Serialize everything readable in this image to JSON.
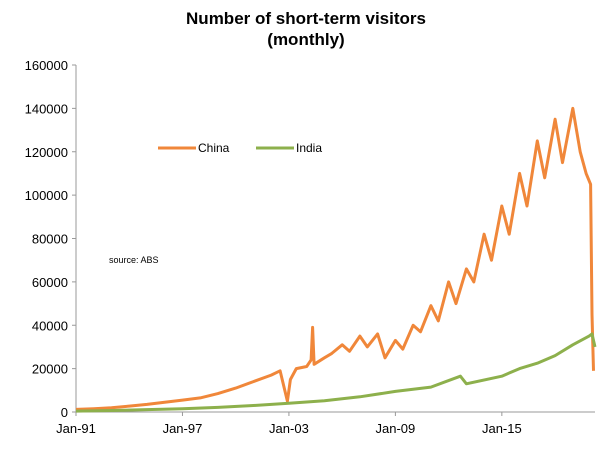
{
  "chart_data": {
    "type": "line",
    "title": [
      "Number of short-term visitors",
      "(monthly)"
    ],
    "xlabel": "",
    "ylabel": "",
    "ylim": [
      0,
      160000
    ],
    "xlim": [
      "1991-01",
      "2020-04"
    ],
    "yticks": [
      "0",
      "20000",
      "40000",
      "60000",
      "80000",
      "100000",
      "120000",
      "140000",
      "160000"
    ],
    "xticks": [
      {
        "label": "Jan-91",
        "year": 1991
      },
      {
        "label": "Jan-97",
        "year": 1997
      },
      {
        "label": "Jan-03",
        "year": 2003
      },
      {
        "label": "Jan-09",
        "year": 2009
      },
      {
        "label": "Jan-15",
        "year": 2015
      }
    ],
    "legend_position": "upper-left, inside plot",
    "annotation": "source:  ABS",
    "grid": false,
    "series": [
      {
        "name": "China",
        "color": "#F0873A",
        "points": [
          [
            "1991-01",
            1200
          ],
          [
            "1992-01",
            1500
          ],
          [
            "1993-01",
            2000
          ],
          [
            "1994-01",
            2700
          ],
          [
            "1995-01",
            3500
          ],
          [
            "1996-01",
            4500
          ],
          [
            "1997-01",
            5500
          ],
          [
            "1998-01",
            6500
          ],
          [
            "1999-01",
            8500
          ],
          [
            "2000-01",
            11000
          ],
          [
            "2001-01",
            14000
          ],
          [
            "2002-01",
            17000
          ],
          [
            "2002-07",
            19000
          ],
          [
            "2002-12",
            5000
          ],
          [
            "2003-02",
            15000
          ],
          [
            "2003-06",
            20000
          ],
          [
            "2004-01",
            21000
          ],
          [
            "2004-04",
            24000
          ],
          [
            "2004-05",
            39000
          ],
          [
            "2004-06",
            22000
          ],
          [
            "2005-01",
            25000
          ],
          [
            "2005-06",
            27000
          ],
          [
            "2006-01",
            31000
          ],
          [
            "2006-06",
            28000
          ],
          [
            "2007-01",
            35000
          ],
          [
            "2007-06",
            30000
          ],
          [
            "2008-01",
            36000
          ],
          [
            "2008-06",
            25000
          ],
          [
            "2009-01",
            33000
          ],
          [
            "2009-06",
            29000
          ],
          [
            "2010-01",
            40000
          ],
          [
            "2010-06",
            37000
          ],
          [
            "2011-01",
            49000
          ],
          [
            "2011-06",
            42000
          ],
          [
            "2012-01",
            60000
          ],
          [
            "2012-06",
            50000
          ],
          [
            "2013-01",
            66000
          ],
          [
            "2013-06",
            60000
          ],
          [
            "2014-01",
            82000
          ],
          [
            "2014-06",
            70000
          ],
          [
            "2015-01",
            95000
          ],
          [
            "2015-06",
            82000
          ],
          [
            "2016-01",
            110000
          ],
          [
            "2016-06",
            95000
          ],
          [
            "2017-01",
            125000
          ],
          [
            "2017-06",
            108000
          ],
          [
            "2018-01",
            135000
          ],
          [
            "2018-06",
            115000
          ],
          [
            "2019-01",
            140000
          ],
          [
            "2019-06",
            120000
          ],
          [
            "2019-10",
            110000
          ],
          [
            "2020-01",
            105000
          ],
          [
            "2020-02",
            45000
          ],
          [
            "2020-03",
            19000
          ]
        ]
      },
      {
        "name": "India",
        "color": "#8DB04C",
        "points": [
          [
            "1991-01",
            400
          ],
          [
            "1993-01",
            700
          ],
          [
            "1995-01",
            1100
          ],
          [
            "1997-01",
            1500
          ],
          [
            "1999-01",
            2100
          ],
          [
            "2001-01",
            3000
          ],
          [
            "2003-01",
            4000
          ],
          [
            "2005-01",
            5200
          ],
          [
            "2007-01",
            7000
          ],
          [
            "2009-01",
            9500
          ],
          [
            "2011-01",
            11500
          ],
          [
            "2012-09",
            16500
          ],
          [
            "2013-01",
            13000
          ],
          [
            "2015-01",
            16500
          ],
          [
            "2016-01",
            20000
          ],
          [
            "2017-01",
            22500
          ],
          [
            "2018-01",
            26000
          ],
          [
            "2019-01",
            31000
          ],
          [
            "2019-12",
            35000
          ],
          [
            "2020-02",
            36000
          ],
          [
            "2020-03",
            33000
          ],
          [
            "2020-04",
            30000
          ]
        ]
      }
    ]
  }
}
